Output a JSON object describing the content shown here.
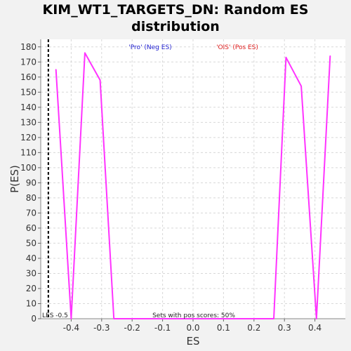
{
  "chart_data": {
    "type": "line",
    "title": "KIM_WT1_TARGETS_DN: Random ES distribution",
    "xlabel": "ES",
    "ylabel": "P(ES)",
    "xlim": [
      -0.5,
      0.5
    ],
    "ylim": [
      0,
      185
    ],
    "xticks": [
      -0.4,
      -0.3,
      -0.2,
      -0.1,
      0.0,
      0.1,
      0.2,
      0.3,
      0.4
    ],
    "yticks": [
      0,
      10,
      20,
      30,
      40,
      50,
      60,
      70,
      80,
      90,
      100,
      110,
      120,
      130,
      140,
      150,
      160,
      170,
      180
    ],
    "grid": true,
    "series": [
      {
        "color": "#ff33ff",
        "x": [
          -0.45,
          -0.4,
          -0.355,
          -0.305,
          -0.26,
          -0.2,
          -0.1,
          0.0,
          0.1,
          0.2,
          0.265,
          0.305,
          0.355,
          0.405,
          0.45
        ],
        "y": [
          165,
          0,
          176,
          158,
          0,
          0,
          0,
          0,
          0,
          0,
          0,
          173,
          154,
          0,
          174
        ]
      }
    ],
    "les": {
      "x": -0.475,
      "label": "LES -0.5"
    },
    "annotations": {
      "neg_label": "'Pro' (Neg ES)",
      "neg_color": "#1f1fd0",
      "pos_label": "'OIS' (Pos ES)",
      "pos_color": "#e02020",
      "pos_scores": "Sets with pos scores: 50%"
    },
    "plot_bg": "#ffffff",
    "grid_color": "#d8d8d8"
  }
}
